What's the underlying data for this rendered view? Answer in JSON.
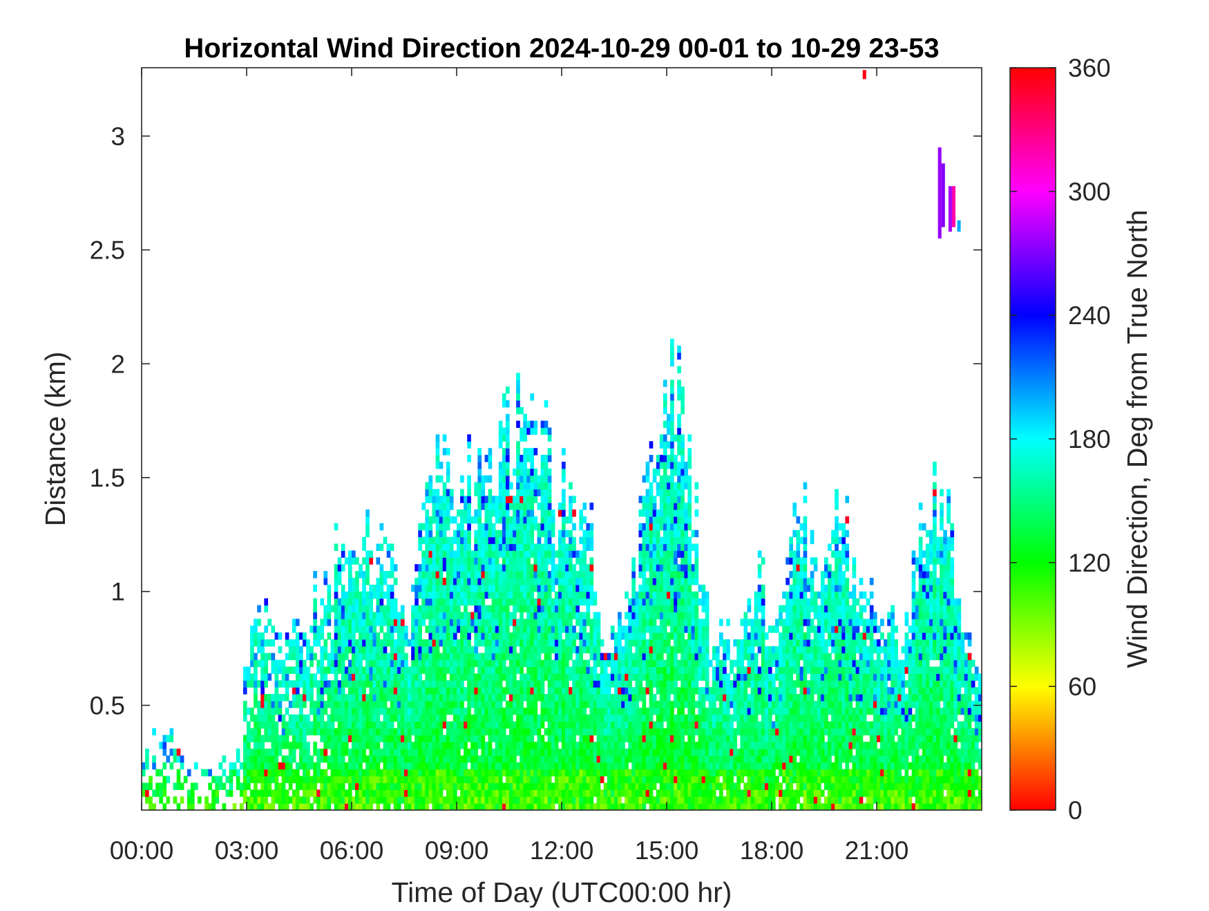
{
  "chart_data": {
    "type": "heatmap",
    "title": "Horizontal Wind Direction 2024-10-29 00-01 to 10-29 23-53",
    "xlabel": "Time of Day (UTC00:00 hr)",
    "ylabel": "Distance (km)",
    "x_unit": "hour of day (UTC)",
    "y_unit": "km",
    "xlim": [
      0,
      24
    ],
    "ylim": [
      0.04,
      3.3
    ],
    "x_ticks": [
      {
        "value": 0,
        "label": "00:00"
      },
      {
        "value": 3,
        "label": "03:00"
      },
      {
        "value": 6,
        "label": "06:00"
      },
      {
        "value": 9,
        "label": "09:00"
      },
      {
        "value": 12,
        "label": "12:00"
      },
      {
        "value": 15,
        "label": "15:00"
      },
      {
        "value": 18,
        "label": "18:00"
      },
      {
        "value": 21,
        "label": "21:00"
      }
    ],
    "y_ticks": [
      {
        "value": 0.5,
        "label": "0.5"
      },
      {
        "value": 1,
        "label": "1"
      },
      {
        "value": 1.5,
        "label": "1.5"
      },
      {
        "value": 2,
        "label": "2"
      },
      {
        "value": 2.5,
        "label": "2.5"
      },
      {
        "value": 3,
        "label": "3"
      }
    ],
    "colorbar": {
      "label": "Wind Direction, Deg from True North",
      "range": [
        0,
        360
      ],
      "ticks": [
        {
          "value": 0,
          "label": "0"
        },
        {
          "value": 60,
          "label": "60"
        },
        {
          "value": 120,
          "label": "120"
        },
        {
          "value": 180,
          "label": "180"
        },
        {
          "value": 240,
          "label": "240"
        },
        {
          "value": 300,
          "label": "300"
        },
        {
          "value": 360,
          "label": "360"
        }
      ],
      "colormap": "hsv",
      "colors": [
        "#ff0000",
        "#ffff00",
        "#00ff00",
        "#00ffff",
        "#0000ff",
        "#ff00ff",
        "#ff0000"
      ]
    },
    "grid": false,
    "time_step_hr": 0.1,
    "range_step_km": 0.03,
    "data_top_km": [
      {
        "t": 0.0,
        "top": 0.22
      },
      {
        "t": 0.3,
        "top": 0.37
      },
      {
        "t": 1.0,
        "top": 0.37
      },
      {
        "t": 1.6,
        "top": 0.22
      },
      {
        "t": 2.5,
        "top": 0.22
      },
      {
        "t": 2.9,
        "top": 0.37
      },
      {
        "t": 3.0,
        "top": 0.87
      },
      {
        "t": 4.6,
        "top": 0.9
      },
      {
        "t": 5.4,
        "top": 1.1
      },
      {
        "t": 6.0,
        "top": 1.3
      },
      {
        "t": 6.8,
        "top": 1.2
      },
      {
        "t": 7.4,
        "top": 1.05
      },
      {
        "t": 7.6,
        "top": 0.85
      },
      {
        "t": 8.0,
        "top": 1.2
      },
      {
        "t": 8.3,
        "top": 1.55
      },
      {
        "t": 9.0,
        "top": 1.5
      },
      {
        "t": 10.2,
        "top": 1.7
      },
      {
        "t": 10.8,
        "top": 1.75
      },
      {
        "t": 11.6,
        "top": 1.6
      },
      {
        "t": 12.4,
        "top": 1.4
      },
      {
        "t": 12.8,
        "top": 1.3
      },
      {
        "t": 13.2,
        "top": 0.75
      },
      {
        "t": 13.9,
        "top": 0.95
      },
      {
        "t": 14.2,
        "top": 1.2
      },
      {
        "t": 14.6,
        "top": 1.6
      },
      {
        "t": 15.0,
        "top": 1.85
      },
      {
        "t": 15.4,
        "top": 1.9
      },
      {
        "t": 15.8,
        "top": 1.4
      },
      {
        "t": 16.2,
        "top": 0.8
      },
      {
        "t": 17.0,
        "top": 0.75
      },
      {
        "t": 17.6,
        "top": 1.1
      },
      {
        "t": 18.1,
        "top": 0.75
      },
      {
        "t": 18.7,
        "top": 1.6
      },
      {
        "t": 19.3,
        "top": 0.95
      },
      {
        "t": 19.9,
        "top": 1.4
      },
      {
        "t": 20.5,
        "top": 1.15
      },
      {
        "t": 21.0,
        "top": 0.85
      },
      {
        "t": 21.8,
        "top": 0.85
      },
      {
        "t": 22.4,
        "top": 1.45
      },
      {
        "t": 23.0,
        "top": 1.4
      },
      {
        "t": 23.4,
        "top": 0.85
      },
      {
        "t": 24.0,
        "top": 0.6
      }
    ],
    "upper_patches": [
      {
        "t0": 22.75,
        "t1": 22.85,
        "y0": 2.55,
        "y1": 2.95,
        "value": 275
      },
      {
        "t0": 22.85,
        "t1": 22.95,
        "y0": 2.6,
        "y1": 2.88,
        "value": 272
      },
      {
        "t0": 23.05,
        "t1": 23.15,
        "y0": 2.58,
        "y1": 2.78,
        "value": 280
      },
      {
        "t0": 23.15,
        "t1": 23.25,
        "y0": 2.6,
        "y1": 2.78,
        "value": 320
      },
      {
        "t0": 23.3,
        "t1": 23.4,
        "y0": 2.58,
        "y1": 2.63,
        "value": 200
      },
      {
        "t0": 20.6,
        "t1": 20.7,
        "y0": 3.25,
        "y1": 3.29,
        "value": 355
      }
    ]
  }
}
